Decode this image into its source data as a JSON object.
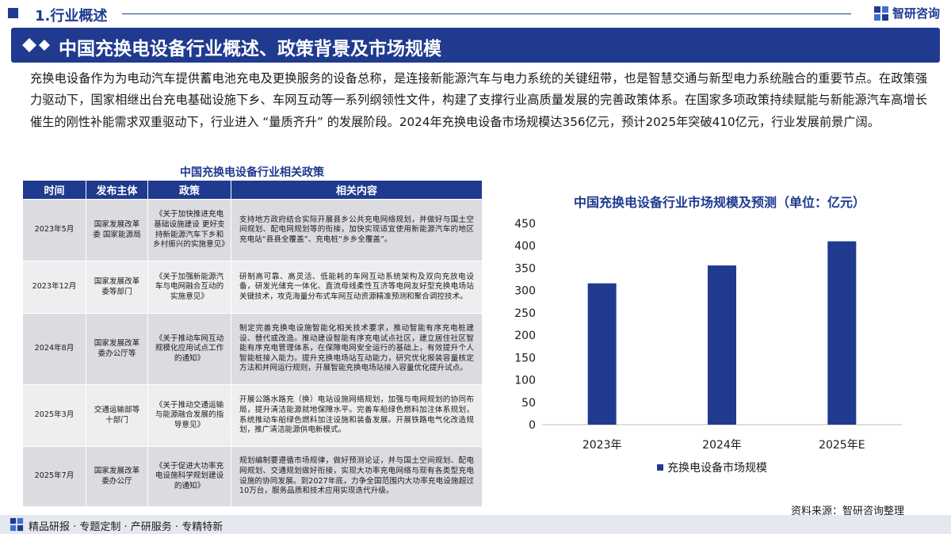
{
  "header": {
    "section": "1.行业概述",
    "brand": "智研咨询",
    "title": "中国充换电设备行业概述、政策背景及市场规模"
  },
  "intro": "充换电设备作为为电动汽车提供蓄电池充电及更换服务的设备总称，是连接新能源汽车与电力系统的关键纽带，也是智慧交通与新型电力系统融合的重要节点。在政策强力驱动下，国家相继出台充电基础设施下乡、车网互动等一系列纲领性文件，构建了支撑行业高质量发展的完善政策体系。在国家多项政策持续赋能与新能源汽车高增长催生的刚性补能需求双重驱动下，行业进入 “量质齐升” 的发展阶段。2024年充换电设备市场规模达356亿元，预计2025年突破410亿元，行业发展前景广阔。",
  "policy_table": {
    "title": "中国充换电设备行业相关政策",
    "headers": [
      "时间",
      "发布主体",
      "政策",
      "相关内容"
    ],
    "rows": [
      [
        "2023年5月",
        "国家发展改革委 国家能源局",
        "《关于加快推进充电基础设施建设 更好支持新能源汽车下乡和乡村振兴的实施意见》",
        "支持地方政府结合实际开展县乡公共充电网络规划，并做好与国土空间规划、配电网规划等的衔接，加快实现适宜使用新能源汽车的地区充电站“县县全覆盖”、充电桩“乡乡全覆盖”。"
      ],
      [
        "2023年12月",
        "国家发展改革委等部门",
        "《关于加强新能源汽车与电网融合互动的实施意见》",
        "研制高可靠、高灵活、低能耗的车网互动系统架构及双向充放电设备，研发光储充一体化、直流母线柔性互济等电网友好型充换电场站关键技术，攻克海量分布式车网互动资源精准预测和聚合调控技术。"
      ],
      [
        "2024年8月",
        "国家发展改革委办公厅等",
        "《关于推动车网互动规模化应用试点工作的通知》",
        "制定完善充换电设施智能化相关技术要求，推动智能有序充电桩建设、替代或改造。推动建设智能有序充电试点社区，建立居住社区智能有序充电管理体系，在保障电网安全运行的基础上，有效提升个人智能桩接入能力。提升充换电场站互动能力，研究优化报装容量核定方法和并网运行规则，开展智能充换电场站接入容量优化提升试点。"
      ],
      [
        "2025年3月",
        "交通运输部等十部门",
        "《关于推动交通运输与能源融合发展的指导意见》",
        "开展公路水路充（换）电站设施网络规划，加强与电网规划的协同布局，提升清洁能源就地保障水平。完善车船绿色燃料加注体系规划，系统推动车船绿色燃料加注设施和装备发展。开展铁路电气化改造规划，推广清洁能源供电新模式。"
      ],
      [
        "2025年7月",
        "国家发展改革委办公厅",
        "《关于促进大功率充电设施科学规划建设的通知》",
        "规划编制要遵循市场规律，做好预测论证，并与国土空间规划、配电网规划、交通规划做好衔接，实现大功率充电网络与现有各类型充电设施的协同发展。到2027年底，力争全国范围内大功率充电设施超过10万台，服务品质和技术应用实现迭代升级。"
      ]
    ]
  },
  "chart_data": {
    "type": "bar",
    "title": "中国充换电设备行业市场规模及预测（单位：亿元）",
    "categories": [
      "2023年",
      "2024年",
      "2025年E"
    ],
    "series": [
      {
        "name": "充换电设备市场规模",
        "values": [
          316,
          356,
          410
        ]
      }
    ],
    "ylim": [
      0,
      450
    ],
    "yticks": [
      0,
      50,
      100,
      150,
      200,
      250,
      300,
      350,
      400,
      450
    ],
    "grid": false,
    "legend": "bottom",
    "color": "#1f3a8f"
  },
  "source": "资料来源：智研咨询整理",
  "footer": "精品研报 · 专题定制 · 产研服务 · 专精特新"
}
